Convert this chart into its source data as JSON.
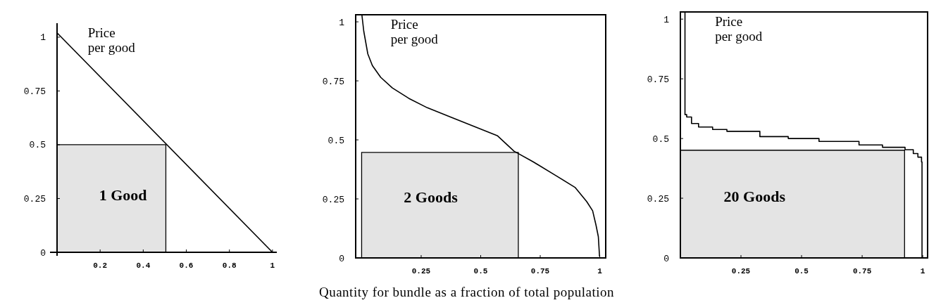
{
  "chart_data": [
    {
      "type": "line",
      "ylabel": "Price per good",
      "annotations": [
        "1 Good"
      ],
      "xlim": [
        0,
        1.02
      ],
      "ylim": [
        0,
        1.065
      ],
      "xticks": [
        0.2,
        0.4,
        0.6,
        0.8,
        1
      ],
      "yticks": [
        0,
        0.25,
        0.5,
        0.75,
        1
      ],
      "series": [
        {
          "type": "area",
          "color": "#e4e4e4",
          "x": [
            0,
            0.505
          ],
          "values": [
            0.5,
            0.5
          ]
        },
        {
          "color": "#000000",
          "x": [
            0,
            1
          ],
          "values": [
            1.02,
            0
          ]
        }
      ]
    },
    {
      "type": "line",
      "ylabel": "Price per good",
      "xlabel": "Quantity for bundle as a fraction of total population",
      "annotations": [
        "2 Goods"
      ],
      "xlim": [
        -0.025,
        1.025
      ],
      "ylim": [
        0,
        1.03
      ],
      "xticks": [
        0.25,
        0.5,
        0.75,
        1
      ],
      "yticks": [
        0,
        0.25,
        0.5,
        0.75,
        1
      ],
      "series": [
        {
          "type": "area",
          "color": "#e4e4e4",
          "x": [
            0,
            0.658
          ],
          "values": [
            0.447,
            0.447
          ]
        },
        {
          "color": "#000000",
          "x": [
            0.001,
            0.009,
            0.026,
            0.045,
            0.08,
            0.129,
            0.198,
            0.276,
            0.375,
            0.473,
            0.571,
            0.64,
            0.719,
            0.817,
            0.896,
            0.945,
            0.97,
            0.984,
            0.994,
            0.999
          ],
          "values": [
            1.03,
            0.96,
            0.864,
            0.815,
            0.765,
            0.72,
            0.676,
            0.636,
            0.596,
            0.557,
            0.517,
            0.452,
            0.408,
            0.348,
            0.299,
            0.239,
            0.2,
            0.14,
            0.09,
            0.006
          ]
        }
      ]
    },
    {
      "type": "step",
      "ylabel": "Price per good",
      "annotations": [
        "20 Goods"
      ],
      "xlim": [
        0,
        1.02
      ],
      "ylim": [
        0,
        1.03
      ],
      "xticks": [
        0.25,
        0.5,
        0.75,
        1
      ],
      "yticks": [
        0,
        0.25,
        0.5,
        0.75,
        1
      ],
      "series": [
        {
          "type": "area",
          "color": "#e4e4e4",
          "x": [
            0,
            0.925
          ],
          "values": [
            0.451,
            0.451
          ]
        },
        {
          "color": "#000000",
          "x": [
            0.019,
            0.019,
            0.026,
            0.046,
            0.075,
            0.133,
            0.192,
            0.328,
            0.445,
            0.572,
            0.737,
            0.834,
            0.927,
            0.961,
            0.98,
            0.995,
            0.997
          ],
          "values": [
            1.03,
            0.6,
            0.59,
            0.563,
            0.548,
            0.538,
            0.53,
            0.508,
            0.5,
            0.488,
            0.473,
            0.463,
            0.453,
            0.437,
            0.422,
            0.402,
            0
          ]
        }
      ]
    }
  ]
}
